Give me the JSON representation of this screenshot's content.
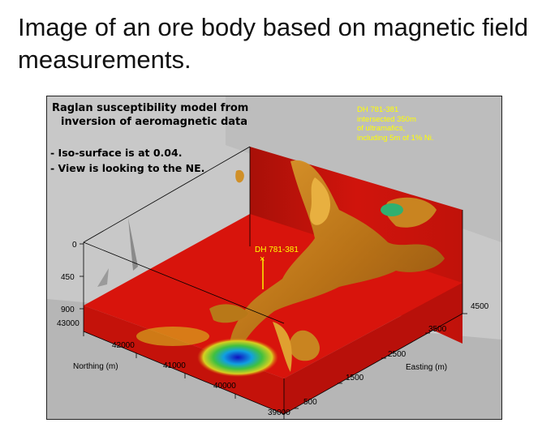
{
  "title": "Image of an ore body based on magnetic field measurements.",
  "figure": {
    "caption_line1": "Raglan susceptibility model from",
    "caption_line2": "inversion of aeromagnetic data",
    "note1": "- Iso-surface is at 0.04.",
    "note2": "- View is looking to the NE.",
    "dh_note": [
      "DH 781-381",
      "intersected 350m",
      "of ultramafics,",
      "including 5m of  1% Ni."
    ],
    "drillhole_label": "DH 781-381",
    "depth_ticks": [
      "0",
      "450",
      "900"
    ],
    "northing_ticks": [
      "43000",
      "42000",
      "41000",
      "40000",
      "39000"
    ],
    "northing_label": "Northing (m)",
    "easting_ticks": [
      "500",
      "1500",
      "2500",
      "3500",
      "4500"
    ],
    "easting_label": "Easting (m)"
  },
  "colors": {
    "red": "#d8140c",
    "orange_body": "#c98420",
    "highlight": "#e8b040",
    "label_yellow": "#ffff00",
    "background_gray": "#c8c8c8"
  }
}
